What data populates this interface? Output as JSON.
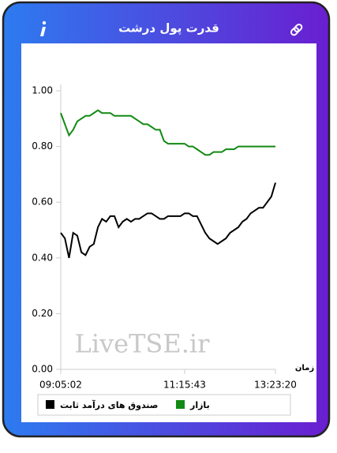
{
  "chart_data": {
    "type": "line",
    "title": "قدرت پول درشت",
    "watermark": "LiveTSE.ir",
    "xlabel": "زمان",
    "categories": [
      "09:05:02",
      null,
      null,
      null,
      null,
      null,
      null,
      null,
      null,
      null,
      null,
      null,
      null,
      null,
      null,
      null,
      null,
      null,
      null,
      null,
      null,
      null,
      null,
      null,
      null,
      null,
      null,
      null,
      null,
      null,
      "11:15:43",
      null,
      null,
      null,
      null,
      null,
      null,
      null,
      null,
      null,
      null,
      null,
      null,
      null,
      null,
      null,
      null,
      null,
      null,
      null,
      null,
      null,
      "13:23:20"
    ],
    "series": [
      {
        "name": "بازار",
        "color": "#138a13",
        "values": [
          0.92,
          0.88,
          0.84,
          0.86,
          0.89,
          0.9,
          0.91,
          0.91,
          0.92,
          0.93,
          0.92,
          0.92,
          0.92,
          0.91,
          0.91,
          0.91,
          0.91,
          0.91,
          0.9,
          0.89,
          0.88,
          0.88,
          0.87,
          0.86,
          0.86,
          0.82,
          0.81,
          0.81,
          0.81,
          0.81,
          0.81,
          0.8,
          0.8,
          0.79,
          0.78,
          0.77,
          0.77,
          0.78,
          0.78,
          0.78,
          0.79,
          0.79,
          0.79,
          0.8,
          0.8,
          0.8,
          0.8,
          0.8,
          0.8,
          0.8,
          0.8,
          0.8,
          0.8
        ]
      },
      {
        "name": "صندوق های درآمد ثابت",
        "color": "#000000",
        "values": [
          0.49,
          0.47,
          0.4,
          0.49,
          0.48,
          0.42,
          0.41,
          0.44,
          0.45,
          0.51,
          0.54,
          0.53,
          0.55,
          0.55,
          0.51,
          0.53,
          0.54,
          0.53,
          0.54,
          0.54,
          0.55,
          0.56,
          0.56,
          0.55,
          0.54,
          0.54,
          0.55,
          0.55,
          0.55,
          0.55,
          0.56,
          0.56,
          0.55,
          0.55,
          0.52,
          0.49,
          0.47,
          0.46,
          0.45,
          0.46,
          0.47,
          0.49,
          0.5,
          0.51,
          0.53,
          0.54,
          0.56,
          0.57,
          0.58,
          0.58,
          0.6,
          0.62,
          0.67
        ]
      }
    ],
    "ylim": [
      0,
      1
    ],
    "yticks": [
      {
        "value": 0,
        "label": "0.00"
      },
      {
        "value": 0.2,
        "label": "0.20"
      },
      {
        "value": 0.4,
        "label": "0.40"
      },
      {
        "value": 0.6,
        "label": "0.60"
      },
      {
        "value": 0.8,
        "label": "0.80"
      },
      {
        "value": 1,
        "label": "1.00"
      }
    ],
    "grid": false,
    "legend": "bottom"
  }
}
